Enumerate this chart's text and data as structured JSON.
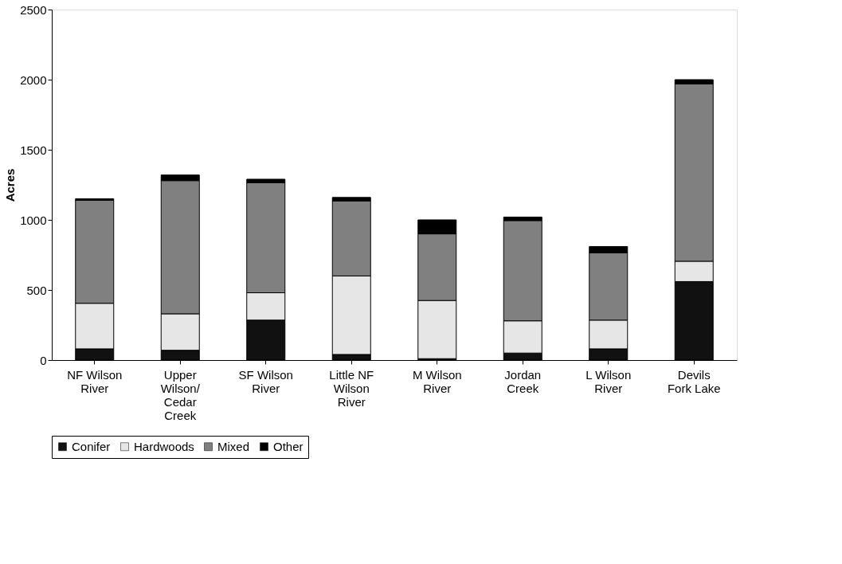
{
  "chart_data": {
    "type": "bar",
    "stacked": true,
    "ylabel": "Acres",
    "categories": [
      "NF Wilson River",
      "Upper Wilson/Cedar Creek",
      "SF Wilson River",
      "Little NF Wilson River",
      "M Wilson River",
      "Jordan Creek",
      "L Wilson River",
      "Devils Fork Lake"
    ],
    "series": [
      {
        "name": "Conifer",
        "color": "#111111",
        "values": [
          80,
          70,
          285,
          40,
          10,
          50,
          80,
          560
        ]
      },
      {
        "name": "Hardwoods",
        "color": "#e6e6e6",
        "values": [
          325,
          260,
          195,
          560,
          415,
          230,
          205,
          145
        ]
      },
      {
        "name": "Mixed",
        "color": "#808080",
        "values": [
          735,
          950,
          785,
          535,
          475,
          715,
          480,
          1265
        ]
      },
      {
        "name": "Other",
        "color": "#000000",
        "values": [
          10,
          40,
          25,
          25,
          100,
          25,
          45,
          30
        ]
      }
    ],
    "ylim": [
      0,
      2500
    ],
    "yticks": [
      0,
      500,
      1000,
      1500,
      2000,
      2500
    ],
    "grid": false,
    "legend": "bottom"
  }
}
